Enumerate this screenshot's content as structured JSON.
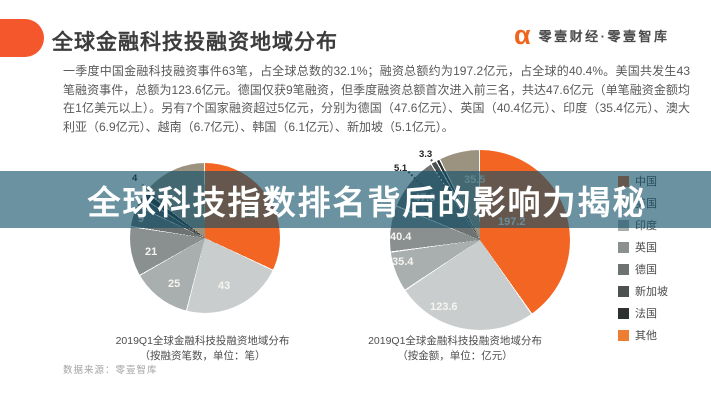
{
  "header": {
    "title": "全球金融科技投融资地域分布",
    "tag_color": "#F4572B",
    "logo": {
      "mark": "α",
      "text": "零壹财经·零壹智库",
      "color": "#F0641E"
    }
  },
  "paragraph": "一季度中国金融科技融资事件63笔，占全球总数的32.1%；融资总额约为197.2亿元，占全球的40.4%。美国共发生43笔融资事件，总额为123.6亿元。德国仅获9笔融资，但季度融资总额首次进入前三名，共达47.6亿元（单笔融资金额均在1亿美元以上）。另有7个国家融资超过5亿元，分别为德国（47.6亿元）、英国（40.4亿元）、印度（35.4亿元）、澳大利亚（6.9亿元）、越南（6.7亿元）、韩国（6.1亿元）、新加坡（5.1亿元）。",
  "overlay": {
    "title": "全球科技指数排名背后的影响力揭秘",
    "color": "rgba(15,79,103,0.62)"
  },
  "legend": {
    "items": [
      {
        "label": "中国",
        "color": "#F26522"
      },
      {
        "label": "美国",
        "color": "#C9CDCE"
      },
      {
        "label": "印度",
        "color": "#A9AEAF"
      },
      {
        "label": "英国",
        "color": "#8A8F90"
      },
      {
        "label": "德国",
        "color": "#6D7273"
      },
      {
        "label": "新加坡",
        "color": "#4C5152"
      },
      {
        "label": "法国",
        "color": "#2D3132"
      },
      {
        "label": "其他",
        "color": "#ED7D31"
      }
    ]
  },
  "pies": {
    "left": {
      "caption_line1": "2019Q1全球金融科技投融资地域分布",
      "caption_line2": "（按融资笔数，单位：笔）",
      "slices": [
        {
          "name": "中国",
          "value": 63,
          "label": "63",
          "color": "#F26522"
        },
        {
          "name": "美国",
          "value": 43,
          "label": "43",
          "color": "#C9CDCE"
        },
        {
          "name": "印度",
          "value": 25,
          "label": "25",
          "color": "#A9AEAF"
        },
        {
          "name": "英国",
          "value": 21,
          "label": "21",
          "color": "#8A8F90"
        },
        {
          "name": "德国",
          "value": 9,
          "label": "9",
          "color": "#6D7273"
        },
        {
          "name": "新加坡",
          "value": 4,
          "label": "4",
          "color": "#4C5152"
        },
        {
          "name": "法国",
          "value": 3,
          "label": "",
          "color": "#2D3132"
        },
        {
          "name": "其他",
          "value": 28,
          "label": "",
          "color": "#9C9280"
        }
      ]
    },
    "right": {
      "caption_line1": "2019Q1全球金融科技投融资地域分布",
      "caption_line2": "（按金额，单位：亿元）",
      "slices": [
        {
          "name": "中国",
          "value": 197.2,
          "label": "197.2",
          "color": "#F26522"
        },
        {
          "name": "美国",
          "value": 123.6,
          "label": "123.6",
          "color": "#C9CDCE"
        },
        {
          "name": "印度",
          "value": 35.4,
          "label": "35.4",
          "color": "#A9AEAF"
        },
        {
          "name": "英国",
          "value": 40.4,
          "label": "40.4",
          "color": "#8A8F90"
        },
        {
          "name": "德国",
          "value": 47.6,
          "label": "47.6",
          "color": "#6D7273"
        },
        {
          "name": "新加坡",
          "value": 5.1,
          "label": "5.1",
          "color": "#4C5152"
        },
        {
          "name": "法国",
          "value": 3.3,
          "label": "3.3",
          "color": "#2D3132"
        },
        {
          "name": "其他",
          "value": 35.5,
          "label": "35.5",
          "color": "#9C9280"
        }
      ]
    }
  },
  "source": "数据来源：零壹智库",
  "chart_data": [
    {
      "type": "pie",
      "title": "2019Q1全球金融科技投融资地域分布（按融资笔数，单位：笔）",
      "categories": [
        "中国",
        "美国",
        "印度",
        "英国",
        "德国",
        "新加坡",
        "法国",
        "其他"
      ],
      "values": [
        63,
        43,
        25,
        21,
        9,
        4,
        3,
        28
      ],
      "unit": "笔",
      "legend_position": "right",
      "notes": "法国与其他数值未标注，按总数约196笔（63笔=32.1%）估算"
    },
    {
      "type": "pie",
      "title": "2019Q1全球金融科技投融资地域分布（按金额，单位：亿元）",
      "categories": [
        "中国",
        "美国",
        "印度",
        "英国",
        "德国",
        "新加坡",
        "法国",
        "其他"
      ],
      "values": [
        197.2,
        123.6,
        35.4,
        40.4,
        47.6,
        5.1,
        3.3,
        35.5
      ],
      "unit": "亿元",
      "legend_position": "right"
    }
  ]
}
